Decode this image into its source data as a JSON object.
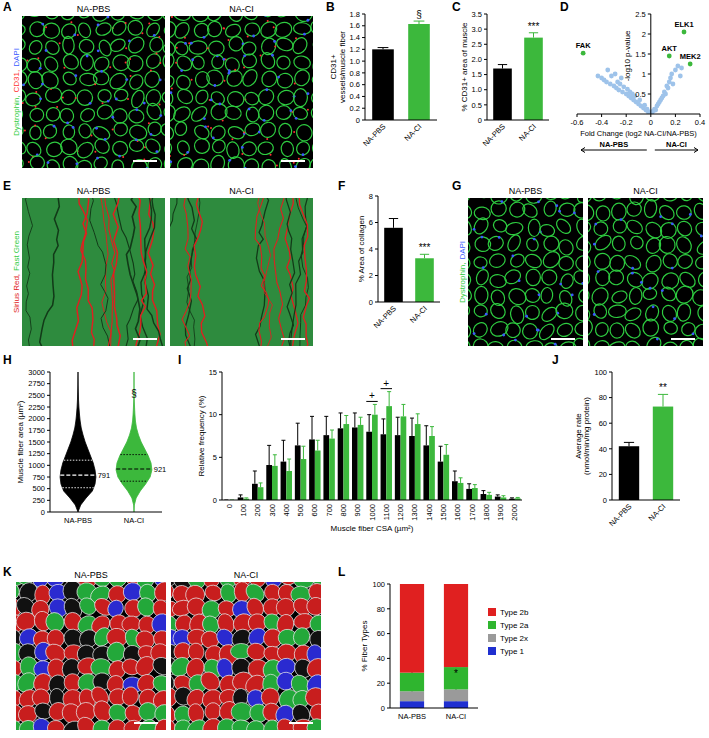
{
  "chart_data": [
    {
      "panel": "B",
      "type": "bar",
      "ylabel": "CD31+ vessels/muscle fiber",
      "categories": [
        "NA-PBS",
        "NA-CI"
      ],
      "values": [
        1.2,
        1.63
      ],
      "errors": [
        0.03,
        0.05
      ],
      "colors": [
        "#000000",
        "#3cb83c"
      ],
      "ylim": [
        0,
        1.8
      ],
      "yticks": [
        0,
        0.2,
        0.4,
        0.6,
        0.8,
        {
          "value": 1,
          "label": "1.0"
        },
        1.2,
        1.4,
        1.6,
        1.8
      ],
      "annotations": [
        null,
        "§"
      ]
    },
    {
      "panel": "C",
      "type": "bar",
      "ylabel": "% CD31+ area of muscle",
      "categories": [
        "NA-PBS",
        "NA-CI"
      ],
      "values": [
        1.7,
        2.72
      ],
      "errors": [
        0.13,
        0.16
      ],
      "colors": [
        "#000000",
        "#3cb83c"
      ],
      "ylim": [
        0,
        3.5
      ],
      "yticks": [
        0,
        0.5,
        {
          "value": 1,
          "label": "1.0"
        },
        1.5,
        {
          "value": 2,
          "label": "2.0"
        },
        2.5,
        {
          "value": 3,
          "label": "3.0"
        },
        3.5
      ],
      "annotations": [
        null,
        "***"
      ]
    },
    {
      "panel": "D",
      "type": "scatter",
      "xlabel": "Fold Change (log2 NA-CI/NA-PBS)",
      "ylabel": "-log10 p-value",
      "xlim": [
        -0.6,
        0.4
      ],
      "xticks": [
        -0.6,
        -0.4,
        -0.2,
        0,
        0.2,
        0.4
      ],
      "ylim": [
        0,
        2.5
      ],
      "yticks": [
        0.5,
        1,
        1.5,
        2,
        2.5
      ],
      "arrow_labels": [
        "NA-PBS",
        "NA-CI"
      ],
      "series": [
        {
          "color": "#9ec3ea",
          "x": [
            -0.43,
            -0.4,
            -0.38,
            -0.36,
            -0.35,
            -0.33,
            -0.32,
            -0.3,
            -0.29,
            -0.28,
            -0.27,
            -0.26,
            -0.25,
            -0.24,
            -0.23,
            -0.22,
            -0.2,
            -0.19,
            -0.18,
            -0.17,
            -0.16,
            -0.15,
            -0.14,
            -0.13,
            -0.12,
            -0.1,
            -0.09,
            -0.08,
            -0.06,
            -0.05,
            -0.04,
            -0.03,
            -0.02,
            -0.01,
            0.01,
            0.02,
            0.03,
            0.04,
            0.05,
            0.06,
            0.07,
            0.08,
            0.09,
            0.1,
            0.11,
            0.12,
            0.13,
            0.14,
            0.15,
            0.16,
            0.17,
            0.18,
            0.2,
            0.22,
            0.24,
            0.25
          ],
          "values": [
            0.95,
            0.9,
            0.85,
            0.8,
            1.1,
            0.75,
            0.95,
            0.7,
            1.0,
            0.65,
            0.8,
            0.6,
            0.75,
            0.9,
            0.55,
            0.68,
            0.5,
            0.62,
            0.45,
            0.55,
            0.4,
            0.5,
            0.35,
            0.45,
            0.3,
            0.25,
            0.35,
            0.2,
            0.15,
            0.22,
            0.1,
            0.12,
            0.05,
            0.03,
            0.04,
            0.08,
            0.12,
            0.1,
            0.2,
            0.25,
            0.3,
            0.35,
            0.4,
            0.45,
            0.55,
            0.5,
            0.7,
            0.65,
            0.8,
            0.9,
            1.0,
            0.75,
            1.1,
            1.2,
            0.95,
            1.15
          ]
        },
        {
          "color": "#3cb83c",
          "x": [
            -0.55,
            0.27,
            0.15,
            0.32
          ],
          "values": [
            1.52,
            2.05,
            1.45,
            1.25
          ],
          "labels": [
            "FAK",
            "ELK1",
            "AKT",
            "MEK2"
          ]
        }
      ]
    },
    {
      "panel": "F",
      "type": "bar",
      "ylabel": "% Area of collagen",
      "categories": [
        "NA-PBS",
        "NA-CI"
      ],
      "values": [
        5.6,
        3.3
      ],
      "errors": [
        0.7,
        0.3
      ],
      "colors": [
        "#000000",
        "#3cb83c"
      ],
      "ylim": [
        0,
        8
      ],
      "yticks": [
        0,
        2,
        4,
        6,
        8
      ],
      "annotations": [
        null,
        "***"
      ]
    },
    {
      "panel": "H",
      "type": "violin",
      "ylabel": "Muscle fiber area (µm²)",
      "categories": [
        "NA-PBS",
        "NA-CI"
      ],
      "colors": [
        "#000000",
        "#3cb83c"
      ],
      "ylim": [
        0,
        3000
      ],
      "yticks": [
        0,
        250,
        500,
        750,
        1000,
        1250,
        1500,
        1750,
        2000,
        2250,
        2500,
        2750,
        3000
      ],
      "density_y": [
        0,
        150,
        300,
        450,
        600,
        750,
        900,
        1050,
        1200,
        1350,
        1500,
        1650,
        1800,
        1950,
        2100,
        2250,
        2400,
        2550,
        2700,
        2850,
        3000
      ],
      "density": [
        [
          0,
          0.15,
          0.45,
          0.8,
          0.95,
          1.0,
          0.95,
          0.85,
          0.7,
          0.55,
          0.4,
          0.28,
          0.18,
          0.12,
          0.08,
          0.05,
          0.03,
          0.02,
          0.01,
          0.005,
          0
        ],
        [
          0,
          0.02,
          0.12,
          0.35,
          0.65,
          0.9,
          1.0,
          0.95,
          0.8,
          0.6,
          0.4,
          0.25,
          0.14,
          0.08,
          0.05,
          0.03,
          0.015,
          0,
          0,
          0,
          0
        ]
      ],
      "quartiles": [
        [
          520,
          791,
          1110
        ],
        [
          660,
          921,
          1230
        ]
      ],
      "annotations": [
        null,
        "§"
      ]
    },
    {
      "panel": "I",
      "type": "bar",
      "xlabel": "Muscle fiber CSA (µm²)",
      "ylabel": "Relative frequency (%)",
      "categories": [
        "0",
        "100",
        "200",
        "300",
        "400",
        "500",
        "600",
        "700",
        "800",
        "900",
        "1000",
        "1100",
        "1200",
        "1300",
        "1400",
        "1500",
        "1600",
        "1700",
        "1800",
        "1900",
        "2000"
      ],
      "ylim": [
        0,
        15
      ],
      "yticks": [
        0,
        5,
        10,
        15
      ],
      "series": [
        {
          "color": "#000000",
          "values": [
            0,
            0.3,
            1.9,
            4.1,
            4.5,
            6.4,
            7.1,
            7.6,
            8.4,
            8.5,
            8.0,
            7.7,
            7.6,
            7.5,
            6.4,
            4.5,
            2.2,
            1.3,
            0.7,
            0.4,
            0.15
          ],
          "errors": [
            0,
            0.3,
            1.5,
            2.3,
            2.5,
            2.6,
            2.7,
            2.2,
            1.8,
            1.7,
            2.0,
            1.8,
            2.1,
            2.1,
            2.3,
            1.8,
            1.2,
            0.6,
            0.4,
            0.2,
            0.1
          ]
        },
        {
          "color": "#3cb83c",
          "values": [
            0,
            0.15,
            1.5,
            4.0,
            3.4,
            4.8,
            5.8,
            7.2,
            8.9,
            8.8,
            10.0,
            11.0,
            9.8,
            8.9,
            7.5,
            5.3,
            2.0,
            1.4,
            0.6,
            0.3,
            0.2
          ],
          "errors": [
            0,
            0.1,
            0.5,
            1.3,
            1.4,
            1.5,
            1.2,
            1.0,
            1.0,
            0.9,
            1.2,
            1.7,
            1.4,
            1.2,
            1.1,
            1.2,
            0.6,
            0.4,
            0.3,
            0.2,
            0.1
          ]
        }
      ],
      "annotations": [
        null,
        null,
        null,
        null,
        null,
        null,
        null,
        null,
        null,
        null,
        "+",
        "+",
        null,
        null,
        null,
        null,
        null,
        null,
        null,
        null,
        null
      ]
    },
    {
      "panel": "J",
      "type": "bar",
      "ylabel": "Average rate (nmol/min/mg protein)",
      "categories": [
        "NA-PBS",
        "NA-CI"
      ],
      "values": [
        42,
        73
      ],
      "errors": [
        3,
        9.5
      ],
      "colors": [
        "#000000",
        "#3cb83c"
      ],
      "ylim": [
        0,
        100
      ],
      "yticks": [
        0,
        20,
        40,
        60,
        80,
        100
      ],
      "annotations": [
        null,
        "**"
      ]
    },
    {
      "panel": "L",
      "type": "bar",
      "stacked": true,
      "legend": "right",
      "ylabel": "% Fiber Types",
      "categories": [
        "NA-PBS",
        "NA-CI"
      ],
      "ylim": [
        0,
        100
      ],
      "yticks": [
        0,
        20,
        40,
        60,
        80,
        100
      ],
      "series": [
        {
          "name": "Type 1",
          "color": "#1f2fd0",
          "values": [
            5.5,
            5.5
          ],
          "errors": [
            1.8,
            1.2
          ]
        },
        {
          "name": "Type 2x",
          "color": "#9a9a9a",
          "values": [
            8,
            9.5
          ],
          "errors": [
            1,
            1.5
          ]
        },
        {
          "name": "Type 2a",
          "color": "#2fb52f",
          "values": [
            15,
            18
          ],
          "errors": [
            1,
            1.3
          ],
          "annotations": [
            null,
            "*"
          ]
        },
        {
          "name": "Type 2b",
          "color": "#e02020",
          "values": [
            71.5,
            67
          ],
          "errors": [
            2,
            2
          ]
        }
      ]
    }
  ],
  "images": [
    {
      "panel": "A",
      "titles": [
        "NA-PBS",
        "NA-CI"
      ],
      "color": "#000000",
      "stains": [
        {
          "text": "Dystrophin,",
          "color": "#2ecc40"
        },
        {
          "text": "CD31,",
          "color": "#ff3030"
        },
        {
          "text": "DAPI",
          "color": "#3a5bff"
        }
      ]
    },
    {
      "panel": "E",
      "titles": [
        "NA-PBS",
        "NA-CI"
      ],
      "color": "#2e8b3e",
      "stains": [
        {
          "text": "Sirius Red,",
          "color": "#e02020"
        },
        {
          "text": "Fast Green",
          "color": "#2ecc40"
        }
      ]
    },
    {
      "panel": "G",
      "titles": [
        "NA-PBS",
        "NA-CI"
      ],
      "color": "#000000",
      "stains": [
        {
          "text": "Dystrophin,",
          "color": "#2ecc40"
        },
        {
          "text": "DAPI",
          "color": "#3a5bff"
        }
      ]
    },
    {
      "panel": "K",
      "titles": [
        "NA-PBS",
        "NA-CI"
      ],
      "color": "#000000",
      "stains": []
    }
  ]
}
